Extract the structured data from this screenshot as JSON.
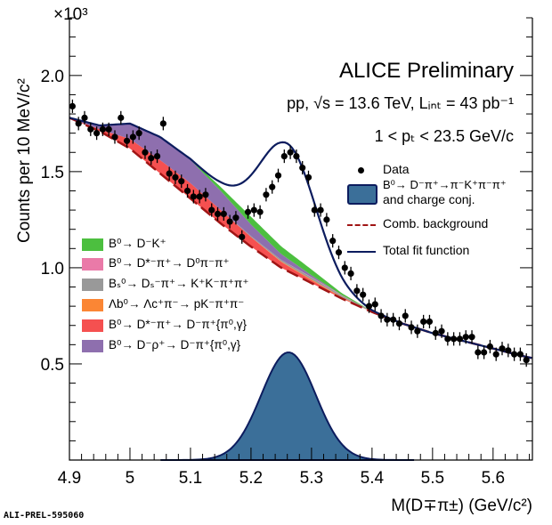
{
  "chart_data": {
    "type": "line",
    "title": "ALICE Preliminary",
    "annotations": [
      "pp, √s = 13.6 TeV,  Lᵢₙₜ = 43 pb⁻¹",
      "1 < pₜ < 23.5 GeV/c"
    ],
    "xlabel": "M(D∓π±) (GeV/c²)",
    "ylabel": "Counts per 10 MeV/c²",
    "y_multiplier": "×10³",
    "xlim": [
      4.9,
      5.665
    ],
    "ylim": [
      0,
      2.3
    ],
    "xticks": [
      "4.9",
      "5",
      "5.1",
      "5.2",
      "5.3",
      "5.4",
      "5.5",
      "5.6"
    ],
    "yticks": [
      "0.5",
      "1.0",
      "1.5",
      "2.0"
    ],
    "watermark": "ALI-PREL-595060",
    "data": {
      "name": "Data",
      "yerr": 0.035,
      "x": [
        4.905,
        4.915,
        4.925,
        4.935,
        4.945,
        4.955,
        4.965,
        4.975,
        4.985,
        4.995,
        5.005,
        5.015,
        5.025,
        5.035,
        5.045,
        5.055,
        5.065,
        5.075,
        5.085,
        5.095,
        5.105,
        5.115,
        5.125,
        5.135,
        5.145,
        5.155,
        5.165,
        5.175,
        5.185,
        5.195,
        5.205,
        5.215,
        5.225,
        5.235,
        5.245,
        5.255,
        5.265,
        5.275,
        5.285,
        5.295,
        5.305,
        5.315,
        5.325,
        5.335,
        5.345,
        5.355,
        5.365,
        5.375,
        5.385,
        5.395,
        5.405,
        5.415,
        5.425,
        5.435,
        5.445,
        5.455,
        5.465,
        5.475,
        5.485,
        5.495,
        5.505,
        5.515,
        5.525,
        5.535,
        5.545,
        5.555,
        5.565,
        5.575,
        5.585,
        5.595,
        5.605,
        5.615,
        5.625,
        5.635,
        5.645,
        5.655
      ],
      "y": [
        1.84,
        1.75,
        1.78,
        1.72,
        1.7,
        1.72,
        1.72,
        1.68,
        1.78,
        1.66,
        1.68,
        1.7,
        1.6,
        1.57,
        1.58,
        1.75,
        1.49,
        1.47,
        1.45,
        1.4,
        1.37,
        1.37,
        1.38,
        1.3,
        1.28,
        1.28,
        1.24,
        1.26,
        1.16,
        1.29,
        1.3,
        1.29,
        1.38,
        1.42,
        1.48,
        1.58,
        1.6,
        1.58,
        1.52,
        1.47,
        1.3,
        1.3,
        1.25,
        1.14,
        1.08,
        1.0,
        0.97,
        0.88,
        0.86,
        0.8,
        0.81,
        0.75,
        0.73,
        0.73,
        0.71,
        0.75,
        0.69,
        0.67,
        0.72,
        0.72,
        0.66,
        0.67,
        0.63,
        0.63,
        0.63,
        0.64,
        0.64,
        0.56,
        0.56,
        0.59,
        0.55,
        0.58,
        0.57,
        0.55,
        0.55,
        0.52
      ]
    },
    "grid_x": [
      4.9,
      4.95,
      5.0,
      5.05,
      5.1,
      5.15,
      5.2,
      5.25,
      5.3,
      5.35,
      5.4,
      5.45,
      5.5,
      5.55,
      5.6,
      5.65,
      5.665
    ],
    "background": {
      "name": "Comb. background",
      "color": "#a01515",
      "y": [
        1.78,
        1.71,
        1.62,
        1.49,
        1.36,
        1.23,
        1.11,
        1.0,
        0.92,
        0.84,
        0.77,
        0.71,
        0.66,
        0.62,
        0.58,
        0.54,
        0.53
      ]
    },
    "components": [
      {
        "name": "B⁰→ D*⁻π⁺→ D⁻π⁺{π⁰,γ}",
        "color": "#f55050",
        "y": [
          0,
          0.01,
          0.05,
          0.07,
          0.08,
          0.07,
          0.05,
          0.03,
          0.015,
          0.005,
          0,
          0,
          0,
          0,
          0,
          0,
          0
        ]
      },
      {
        "name": "Λᵦ⁰→ Λᶄ⁺π⁻→ pK⁻π⁺π⁻",
        "color": "#fb8634",
        "y": [
          0,
          0,
          0,
          0,
          0,
          0,
          0,
          0.003,
          0.004,
          0.003,
          0,
          0,
          0,
          0,
          0,
          0,
          0
        ]
      },
      {
        "name": "Bₛ⁰→ Dₛ⁻π⁺→ K⁺K⁻π⁺π⁺",
        "color": "#999999",
        "y": [
          0,
          0,
          0,
          0,
          0,
          0,
          0.005,
          0.008,
          0.01,
          0.008,
          0.004,
          0,
          0,
          0,
          0,
          0,
          0
        ]
      },
      {
        "name": "B⁰→ D*⁻π⁺→ D⁰π⁻π⁺",
        "color": "#ea7aa8",
        "y": [
          0,
          0,
          0,
          0,
          0,
          0,
          0,
          0,
          0.002,
          0.002,
          0,
          0,
          0,
          0,
          0,
          0,
          0
        ]
      },
      {
        "name": "B⁰→ D⁻ρ⁺→ D⁻π⁺{π⁰,γ}",
        "color": "#8e6fae",
        "y": [
          0,
          0.02,
          0.08,
          0.12,
          0.12,
          0.1,
          0.06,
          0.03,
          0.01,
          0,
          0,
          0,
          0,
          0,
          0,
          0,
          0
        ]
      },
      {
        "name": "B⁰→ D⁻K⁺",
        "color": "#4cbf3f",
        "y": [
          0,
          0,
          0,
          0,
          0.005,
          0.02,
          0.04,
          0.04,
          0.03,
          0.01,
          0,
          0,
          0,
          0,
          0,
          0,
          0
        ]
      }
    ],
    "signal": {
      "name": "B⁰→ D⁻π⁺→π⁻K⁺π⁻π⁺",
      "name2": "and charge conj.",
      "color": "#3b6f99",
      "mean": 5.262,
      "sigma": 0.045,
      "amplitude": 0.56,
      "range": [
        5.05,
        5.47
      ]
    },
    "total": {
      "name": "Total fit function",
      "color": "#0c1c5e"
    },
    "legend_left": [
      "B⁰→ D⁻K⁺",
      "B⁰→ D*⁻π⁺→ D⁰π⁻π⁺",
      "Bₛ⁰→ Dₛ⁻π⁺→ K⁺K⁻π⁺π⁺",
      "Λb⁰→ Λc⁺π⁻→ pK⁻π⁺π⁻",
      "B⁰→ D*⁻π⁺→ D⁻π⁺{π⁰,γ}",
      "B⁰→ D⁻ρ⁺→ D⁻π⁺{π⁰,γ}"
    ],
    "legend_left_colors": [
      "#4cbf3f",
      "#ea7aa8",
      "#999999",
      "#fb8634",
      "#f55050",
      "#8e6fae"
    ]
  }
}
